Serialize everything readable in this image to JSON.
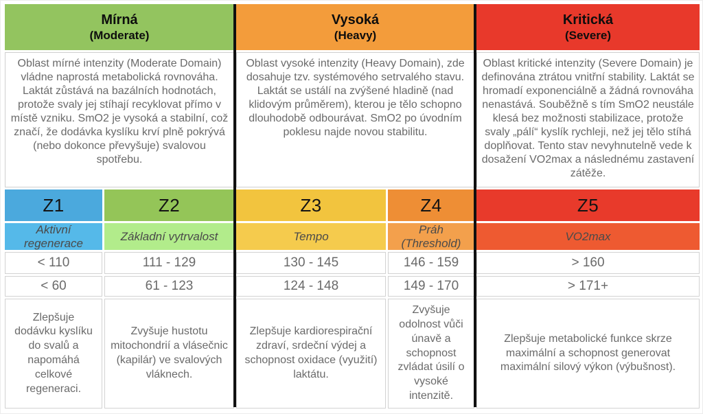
{
  "domains": [
    {
      "name": "Mírná",
      "subtitle": "(Moderate)",
      "color": "#93C45F",
      "description": "Oblast mírné intenzity (Moderate Domain) vládne naprostá metabolická rovnováha. Laktát zůstává na bazálních hodnotách, protože svaly jej stíhají recyklovat přímo v místě vzniku. SmO2 je vysoká a stabilní, což značí, že dodávka kyslíku krví plně pokrývá (nebo dokonce převyšuje) svalovou spotřebu."
    },
    {
      "name": "Vysoká",
      "subtitle": "(Heavy)",
      "color": "#F39C3B",
      "description": "Oblast vysoké intenzity (Heavy Domain), zde dosahuje tzv. systémového setrvalého stavu. Laktát se ustálí na zvýšené hladině (nad klidovým průměrem), kterou je tělo schopno dlouhodobě odbourávat. SmO2 po úvodním poklesu najde novou stabilitu."
    },
    {
      "name": "Kritická",
      "subtitle": "(Severe)",
      "color": "#E8392B",
      "description": "Oblast kritické intenzity (Severe Domain) je definována ztrátou vnitřní stability. Laktát se hromadí exponenciálně a žádná rovnováha nenastává. Souběžně s tím SmO2 neustále klesá bez možnosti stabilizace, protože svaly „pálí“ kyslík rychleji, než jej tělo stíhá doplňovat. Tento stav nevyhnutelně vede k dosažení VO2max a následnému zastavení zátěže."
    }
  ],
  "zones": [
    {
      "id": "Z1",
      "name": "Aktivní regenerace",
      "header_color": "#4BA9DD",
      "name_color": "#55B9E9",
      "range1": "< 110",
      "range2": "< 60",
      "benefit": "Zlepšuje dodávku kyslíku do svalů a napomáhá celkové regeneraci."
    },
    {
      "id": "Z2",
      "name": "Základní vytrvalost",
      "header_color": "#94C558",
      "name_color": "#B2EC8B",
      "range1": "111 - 129",
      "range2": "61 - 123",
      "benefit": "Zvyšuje hustotu mitochondrií a vlásečnic (kapilár) ve svalových vláknech."
    },
    {
      "id": "Z3",
      "name": "Tempo",
      "header_color": "#F2C43E",
      "name_color": "#F5CB4D",
      "range1": "130 - 145",
      "range2": "124 - 148",
      "benefit": "Zlepšuje kardiorespirační zdraví, srdeční výdej a schopnost oxidace (využití) laktátu."
    },
    {
      "id": "Z4",
      "name": "Práh (Threshold)",
      "header_color": "#EE8E35",
      "name_color": "#F3A04C",
      "range1": "146 - 159",
      "range2": "149 - 170",
      "benefit": "Zvyšuje odolnost vůči únavě a schopnost zvládat úsilí o vysoké intenzitě."
    },
    {
      "id": "Z5",
      "name": "VO2max",
      "header_color": "#E83A2B",
      "name_color": "#EE5A31",
      "range1": "> 160",
      "range2": "> 171+",
      "benefit": "Zlepšuje metabolické funkce skrze maximální a schopnost generovat maximální silový výkon (výbušnost)."
    }
  ]
}
